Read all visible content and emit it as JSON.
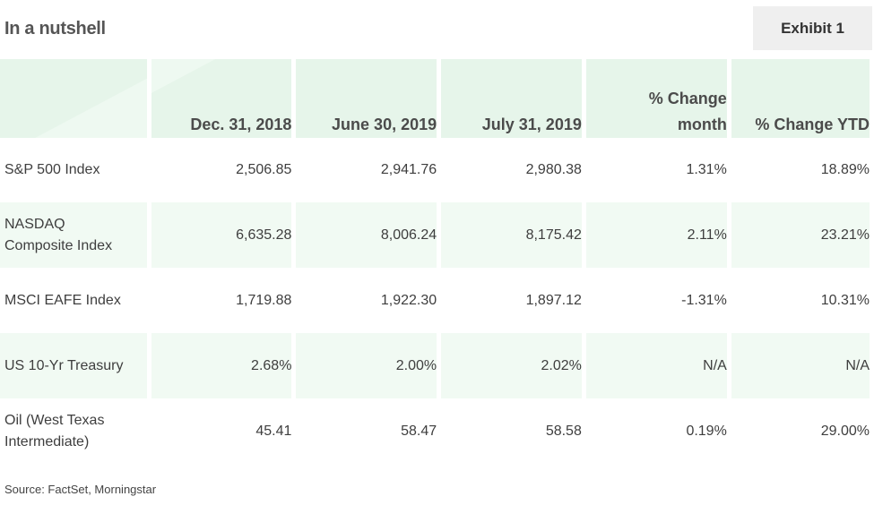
{
  "title": "In a nutshell",
  "exhibit": "Exhibit 1",
  "table": {
    "headers": [
      "",
      "Dec. 31, 2018",
      "June 30, 2019",
      "July 31, 2019",
      "% Change month",
      "% Change YTD"
    ],
    "header_change_month_line1": "% Change",
    "header_change_month_line2": "month",
    "rows": [
      {
        "label_line1": "S&P 500 Index",
        "label_line2": "",
        "values": [
          "2,506.85",
          "2,941.76",
          "2,980.38",
          "1.31%",
          "18.89%"
        ]
      },
      {
        "label_line1": "NASDAQ",
        "label_line2": "Composite Index",
        "values": [
          "6,635.28",
          "8,006.24",
          "8,175.42",
          "2.11%",
          "23.21%"
        ]
      },
      {
        "label_line1": "MSCI EAFE Index",
        "label_line2": "",
        "values": [
          "1,719.88",
          "1,922.30",
          "1,897.12",
          "-1.31%",
          "10.31%"
        ]
      },
      {
        "label_line1": "US 10-Yr Treasury",
        "label_line2": "",
        "values": [
          "2.68%",
          "2.00%",
          "2.02%",
          "N/A",
          "N/A"
        ]
      },
      {
        "label_line1": "Oil (West Texas",
        "label_line2": "Intermediate)",
        "values": [
          "45.41",
          "58.47",
          "58.58",
          "0.19%",
          "29.00%"
        ]
      }
    ]
  },
  "source": "Source: FactSet, Morningstar",
  "colors": {
    "header_bg": "#e6f5ea",
    "alt_row_bg": "#f1faf3",
    "exhibit_bg": "#efefef"
  }
}
